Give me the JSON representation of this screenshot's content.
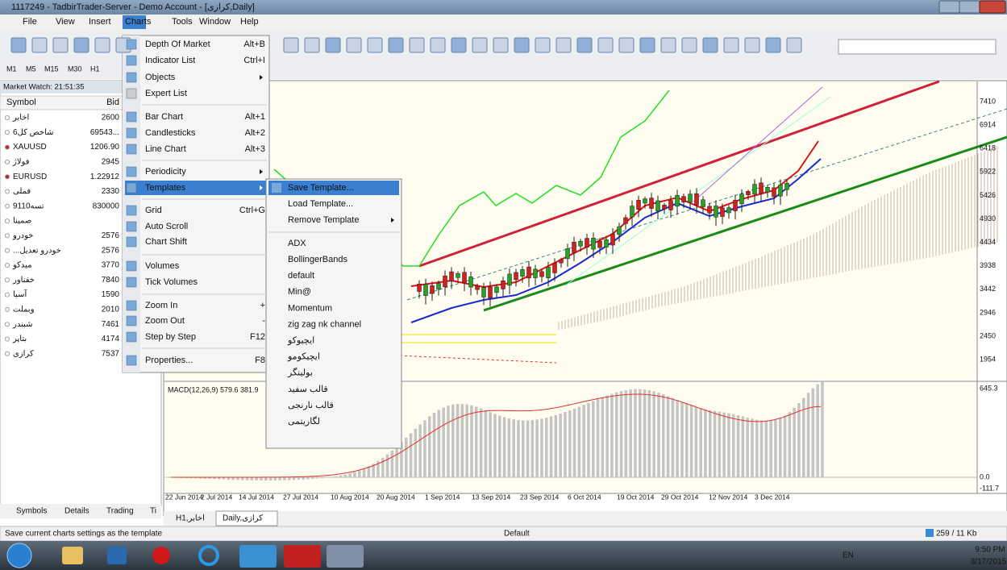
{
  "window": {
    "title": "1117249 - TadbirTrader-Server - Demo Account - [کرازی,Daily]"
  },
  "menu": [
    "File",
    "View",
    "Insert",
    "Charts",
    "Tools",
    "Window",
    "Help"
  ],
  "timeframes": [
    "M1",
    "M5",
    "M15",
    "M30",
    "H1"
  ],
  "market_watch": {
    "title": "Market Watch: 21:51:35",
    "columns": [
      "Symbol",
      "Bid"
    ],
    "rows": [
      {
        "symbol": "اخابر",
        "bid": "2600"
      },
      {
        "symbol": "شاخص کل6",
        "bid": "69543..."
      },
      {
        "symbol": "XAUUSD",
        "bid": "1206.90"
      },
      {
        "symbol": "فولاژ",
        "bid": "2945"
      },
      {
        "symbol": "EURUSD",
        "bid": "1.22912"
      },
      {
        "symbol": "فملی",
        "bid": "2330"
      },
      {
        "symbol": "تسه9110",
        "bid": "830000"
      },
      {
        "symbol": "صمینا"
      },
      {
        "symbol": "خودرو",
        "bid": "2576"
      },
      {
        "symbol": "...خودرو تعدیل",
        "bid": "2576"
      },
      {
        "symbol": "میدکو",
        "bid": "3770"
      },
      {
        "symbol": "خفناور",
        "bid": "7840"
      },
      {
        "symbol": "آسیا",
        "bid": "1590"
      },
      {
        "symbol": "وبملت",
        "bid": "2010"
      },
      {
        "symbol": "شبندر",
        "bid": "7461"
      },
      {
        "symbol": "بتاپر",
        "bid": "4174"
      },
      {
        "symbol": "کرازی",
        "bid": "7537"
      }
    ],
    "tabs": [
      "Symbols",
      "Details",
      "Trading",
      "Ti"
    ]
  },
  "charts_menu": [
    {
      "label": "Depth Of Market",
      "shortcut": "Alt+B"
    },
    {
      "label": "Indicator List",
      "shortcut": "Ctrl+I"
    },
    {
      "label": "Objects"
    },
    {
      "label": "Expert List"
    },
    {
      "label": "Bar Chart",
      "shortcut": "Alt+1"
    },
    {
      "label": "Candlesticks",
      "shortcut": "Alt+2"
    },
    {
      "label": "Line Chart",
      "shortcut": "Alt+3"
    },
    {
      "label": "Periodicity"
    },
    {
      "label": "Templates"
    },
    {
      "label": "Grid",
      "shortcut": "Ctrl+G"
    },
    {
      "label": "Auto Scroll"
    },
    {
      "label": "Chart Shift"
    },
    {
      "label": "Volumes"
    },
    {
      "label": "Tick Volumes"
    },
    {
      "label": "Zoom In",
      "shortcut": "+"
    },
    {
      "label": "Zoom Out",
      "shortcut": "-"
    },
    {
      "label": "Step by Step",
      "shortcut": "F12"
    },
    {
      "label": "Properties...",
      "shortcut": "F8"
    }
  ],
  "templates_menu": [
    "Save Template...",
    "Load Template...",
    "Remove Template",
    "ADX",
    "BollingerBands",
    "default",
    "Min@",
    "Momentum",
    "zig zag nk channel",
    "ایچیوکو",
    "ایچیکومو",
    "بولینگر",
    "قالب سفید",
    "قالب نارنجی",
    "لگاریتمی"
  ],
  "chart": {
    "price_labels": [
      "7410",
      "6914",
      "6418",
      "5922",
      "5426",
      "4930",
      "4434",
      "3938",
      "3442",
      "2946",
      "2450",
      "1954"
    ],
    "macd_title": "MACD(12,26,9) 579.6 381.9",
    "macd_labels": [
      "645.3",
      "0.0",
      "-111.7"
    ],
    "dates": [
      "22 Jun 2014",
      "2 Jul 2014",
      "14 Jul 2014",
      "27 Jul 2014",
      "10 Aug 2014",
      "20 Aug 2014",
      "1 Sep 2014",
      "13 Sep 2014",
      "23 Sep 2014",
      "6 Oct 2014",
      "19 Oct 2014",
      "29 Oct 2014",
      "12 Nov 2014",
      "3 Dec 2014"
    ],
    "tabs": [
      "H1,اخابر",
      "Daily,کرازی"
    ]
  },
  "status": {
    "message": "Save current charts settings as the template",
    "profile": "Default",
    "traffic": "259 / 11 Kb"
  },
  "taskbar": {
    "language": "EN",
    "time": "9:50 PM",
    "date": "3/17/2015"
  }
}
